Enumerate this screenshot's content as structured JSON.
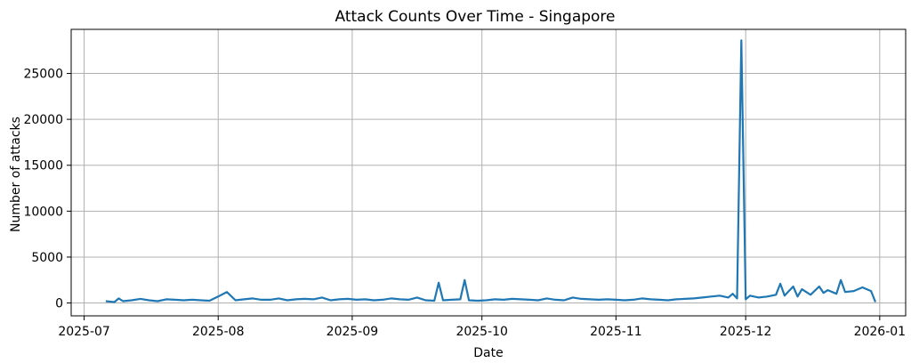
{
  "chart_data": {
    "type": "line",
    "title": "Attack Counts Over Time - Singapore",
    "xlabel": "Date",
    "ylabel": "Number of attacks",
    "x_axis_type": "date",
    "xlim": [
      "2025-06-28",
      "2026-01-07"
    ],
    "ylim": [
      -1400,
      29800
    ],
    "xticks": [
      "2025-07",
      "2025-08",
      "2025-09",
      "2025-10",
      "2025-11",
      "2025-12",
      "2026-01"
    ],
    "xtick_dates": [
      "2025-07-01",
      "2025-08-01",
      "2025-09-01",
      "2025-10-01",
      "2025-11-01",
      "2025-12-01",
      "2026-01-01"
    ],
    "yticks": [
      0,
      5000,
      10000,
      15000,
      20000,
      25000
    ],
    "grid": true,
    "legend": "none",
    "colors": {
      "line": "#1f77b4",
      "grid": "#b0b0b0",
      "axes": "#000000"
    },
    "series": [
      {
        "x": [
          "2025-07-06",
          "2025-07-08",
          "2025-07-09",
          "2025-07-10",
          "2025-07-12",
          "2025-07-14",
          "2025-07-16",
          "2025-07-18",
          "2025-07-20",
          "2025-07-22",
          "2025-07-24",
          "2025-07-26",
          "2025-07-28",
          "2025-07-30",
          "2025-08-01",
          "2025-08-03",
          "2025-08-05",
          "2025-08-07",
          "2025-08-09",
          "2025-08-11",
          "2025-08-13",
          "2025-08-15",
          "2025-08-17",
          "2025-08-19",
          "2025-08-21",
          "2025-08-23",
          "2025-08-25",
          "2025-08-27",
          "2025-08-29",
          "2025-08-31",
          "2025-09-02",
          "2025-09-04",
          "2025-09-06",
          "2025-09-08",
          "2025-09-10",
          "2025-09-12",
          "2025-09-14",
          "2025-09-16",
          "2025-09-18",
          "2025-09-20",
          "2025-09-21",
          "2025-09-22",
          "2025-09-24",
          "2025-09-26",
          "2025-09-27",
          "2025-09-28",
          "2025-09-30",
          "2025-10-02",
          "2025-10-04",
          "2025-10-06",
          "2025-10-08",
          "2025-10-10",
          "2025-10-12",
          "2025-10-14",
          "2025-10-16",
          "2025-10-18",
          "2025-10-20",
          "2025-10-22",
          "2025-10-24",
          "2025-10-26",
          "2025-10-28",
          "2025-10-30",
          "2025-11-01",
          "2025-11-03",
          "2025-11-05",
          "2025-11-07",
          "2025-11-09",
          "2025-11-11",
          "2025-11-13",
          "2025-11-15",
          "2025-11-17",
          "2025-11-19",
          "2025-11-21",
          "2025-11-23",
          "2025-11-25",
          "2025-11-27",
          "2025-11-28",
          "2025-11-29",
          "2025-11-30",
          "2025-12-01",
          "2025-12-02",
          "2025-12-04",
          "2025-12-06",
          "2025-12-08",
          "2025-12-09",
          "2025-12-10",
          "2025-12-12",
          "2025-12-13",
          "2025-12-14",
          "2025-12-16",
          "2025-12-18",
          "2025-12-19",
          "2025-12-20",
          "2025-12-22",
          "2025-12-23",
          "2025-12-24",
          "2025-12-26",
          "2025-12-28",
          "2025-12-30",
          "2025-12-31"
        ],
        "values": [
          200,
          100,
          500,
          200,
          300,
          450,
          300,
          200,
          400,
          350,
          300,
          350,
          300,
          250,
          700,
          1200,
          300,
          400,
          500,
          350,
          350,
          500,
          300,
          400,
          450,
          400,
          600,
          300,
          400,
          450,
          350,
          400,
          300,
          350,
          500,
          400,
          350,
          600,
          300,
          250,
          2200,
          300,
          350,
          400,
          2500,
          300,
          250,
          300,
          400,
          350,
          450,
          400,
          350,
          300,
          500,
          350,
          300,
          600,
          450,
          400,
          350,
          400,
          350,
          300,
          350,
          500,
          400,
          350,
          300,
          400,
          450,
          500,
          600,
          700,
          800,
          600,
          1000,
          500,
          28600,
          400,
          800,
          600,
          700,
          900,
          2100,
          800,
          1800,
          700,
          1500,
          900,
          1800,
          1100,
          1400,
          1000,
          2500,
          1200,
          1300,
          1700,
          1300,
          100
        ]
      }
    ]
  }
}
